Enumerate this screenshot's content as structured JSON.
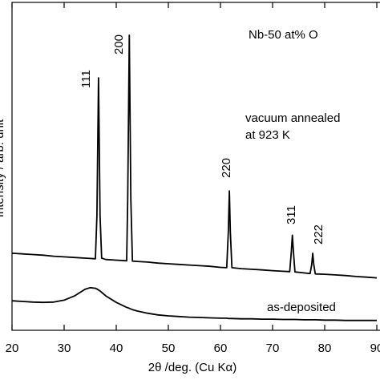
{
  "chart_data": {
    "type": "line",
    "x_label": "2θ /deg. (Cu Kα)",
    "y_label": "Intensity / arb. unit",
    "x": [
      20,
      22,
      24,
      26,
      28,
      30,
      32,
      34,
      35,
      36,
      36.3,
      36.6,
      36.9,
      37.2,
      38,
      40,
      42,
      42.2,
      42.5,
      42.8,
      43.1,
      44,
      46,
      48,
      50,
      52,
      54,
      56,
      58,
      60,
      61.2,
      61.5,
      61.7,
      61.9,
      62.2,
      64,
      66,
      68,
      70,
      72,
      73.3,
      73.6,
      73.8,
      74,
      74.3,
      76,
      77.2,
      77.5,
      77.7,
      77.9,
      78.2,
      80,
      82,
      84,
      86,
      88,
      90
    ],
    "series": [
      {
        "name": "vacuum annealed at 923 K",
        "color": "#000000",
        "values": [
          23.5,
          23.3,
          23.1,
          22.9,
          22.6,
          22.4,
          22.2,
          22.0,
          21.9,
          21.8,
          35,
          77,
          35,
          22,
          21.6,
          21.4,
          21.2,
          40,
          90,
          40,
          21.1,
          21,
          20.8,
          20.5,
          20.3,
          20.1,
          19.9,
          19.7,
          19.5,
          19.2,
          19.1,
          30,
          42.5,
          30,
          19.1,
          18.8,
          18.6,
          18.4,
          18.2,
          18,
          17.9,
          24,
          29,
          24,
          17.8,
          17.5,
          17.3,
          20,
          23.5,
          20,
          17.2,
          17.1,
          16.9,
          16.7,
          16.4,
          16.2,
          16
        ]
      },
      {
        "name": "as-deposited",
        "color": "#000000",
        "values": [
          9,
          8.8,
          8.6,
          8.5,
          8.6,
          9.2,
          10.5,
          12.5,
          13,
          12.8,
          12.6,
          12.3,
          12,
          11.6,
          10.5,
          8.5,
          7,
          6.9,
          6.7,
          6.5,
          6.3,
          5.9,
          5.2,
          4.7,
          4.4,
          4.2,
          4,
          3.9,
          3.8,
          3.7,
          3.7,
          3.6,
          3.6,
          3.6,
          3.6,
          3.5,
          3.5,
          3.4,
          3.4,
          3.3,
          3.3,
          3.3,
          3.3,
          3.3,
          3.3,
          3.2,
          3.2,
          3.2,
          3.2,
          3.2,
          3.2,
          3.1,
          3.1,
          3,
          3,
          3,
          3
        ]
      }
    ],
    "annotations": [
      "Nb-50 at% O",
      "vacuum annealed",
      "at 923 K",
      "111",
      "200",
      "220",
      "311",
      "222"
    ],
    "xlim": [
      20,
      90
    ],
    "xticks": [
      20,
      30,
      40,
      50,
      60,
      70,
      80,
      90
    ],
    "ylim": [
      0,
      100
    ]
  }
}
